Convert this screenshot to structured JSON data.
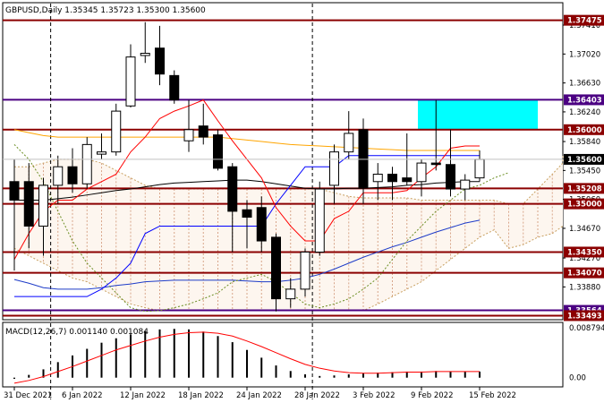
{
  "header": {
    "symbol_line": "GBPUSD,Daily  1.35345 1.35723 1.35300 1.35600",
    "macd_label": "MACD(12,26,7) 0.001140 0.001084"
  },
  "colors": {
    "background": "#ffffff",
    "level_line": "#8b0000",
    "level_label_bg": "#8b0000",
    "purple_line": "#4b0082",
    "cyan_zone": "#00ffff",
    "tenkan": "#ff0000",
    "kijun": "#0000ff",
    "chikou": "#6b8e23",
    "ma_orange": "#ffa500",
    "ma_black": "#000000",
    "ma_blue": "#1e3cc8",
    "macd_hist": "#000000",
    "macd_signal": "#ff0000",
    "price_label_bg": "#000000"
  },
  "price_axis": {
    "ticks": [
      "1.37410",
      "1.37020",
      "1.36630",
      "1.36240",
      "1.35840",
      "1.35450",
      "1.35060",
      "1.34670",
      "1.34270",
      "1.33880"
    ],
    "levels": [
      {
        "price": "1.37475",
        "value": 1.37475,
        "kind": "resistance"
      },
      {
        "price": "1.36403",
        "value": 1.36403,
        "kind": "purple"
      },
      {
        "price": "1.36000",
        "value": 1.36,
        "kind": "resistance"
      },
      {
        "price": "1.35208",
        "value": 1.35208,
        "kind": "resistance"
      },
      {
        "price": "1.35000",
        "value": 1.35,
        "kind": "resistance"
      },
      {
        "price": "1.34350",
        "value": 1.3435,
        "kind": "resistance"
      },
      {
        "price": "1.34070",
        "value": 1.3407,
        "kind": "resistance"
      },
      {
        "price": "1.33564",
        "value": 1.33564,
        "kind": "purple"
      },
      {
        "price": "1.33493",
        "value": 1.33493,
        "kind": "resistance"
      }
    ],
    "current_price": "1.35600",
    "current_value": 1.356,
    "macd_ticks": [
      "0.008794",
      "0.00"
    ]
  },
  "time_axis": {
    "labels": [
      "31 Dec 2021",
      "6 Jan 2022",
      "12 Jan 2022",
      "18 Jan 2022",
      "24 Jan 2022",
      "28 Jan 2022",
      "3 Feb 2022",
      "9 Feb 2022",
      "15 Feb 2022"
    ],
    "label_bars": [
      0,
      4,
      8,
      12,
      16,
      20,
      24,
      28,
      32
    ]
  },
  "chart_data": {
    "type": "candlestick",
    "symbol": "GBPUSD",
    "timeframe": "Daily",
    "ylim": [
      1.3345,
      1.377
    ],
    "candles": [
      {
        "o": 1.353,
        "h": 1.356,
        "l": 1.341,
        "c": 1.3505
      },
      {
        "o": 1.353,
        "h": 1.3555,
        "l": 1.344,
        "c": 1.347
      },
      {
        "o": 1.347,
        "h": 1.3535,
        "l": 1.343,
        "c": 1.3525
      },
      {
        "o": 1.3525,
        "h": 1.3565,
        "l": 1.35,
        "c": 1.355
      },
      {
        "o": 1.355,
        "h": 1.3575,
        "l": 1.3515,
        "c": 1.3527
      },
      {
        "o": 1.3527,
        "h": 1.359,
        "l": 1.352,
        "c": 1.358
      },
      {
        "o": 1.3567,
        "h": 1.3595,
        "l": 1.356,
        "c": 1.357
      },
      {
        "o": 1.357,
        "h": 1.3635,
        "l": 1.3565,
        "c": 1.3625
      },
      {
        "o": 1.3632,
        "h": 1.3715,
        "l": 1.363,
        "c": 1.3698
      },
      {
        "o": 1.37,
        "h": 1.3745,
        "l": 1.369,
        "c": 1.3703
      },
      {
        "o": 1.371,
        "h": 1.374,
        "l": 1.366,
        "c": 1.3675
      },
      {
        "o": 1.3673,
        "h": 1.368,
        "l": 1.3635,
        "c": 1.364
      },
      {
        "o": 1.3585,
        "h": 1.364,
        "l": 1.357,
        "c": 1.36
      },
      {
        "o": 1.3605,
        "h": 1.3635,
        "l": 1.358,
        "c": 1.359
      },
      {
        "o": 1.3593,
        "h": 1.36,
        "l": 1.3545,
        "c": 1.3548
      },
      {
        "o": 1.355,
        "h": 1.3555,
        "l": 1.3435,
        "c": 1.349
      },
      {
        "o": 1.3492,
        "h": 1.3505,
        "l": 1.344,
        "c": 1.3482
      },
      {
        "o": 1.3495,
        "h": 1.351,
        "l": 1.3435,
        "c": 1.345
      },
      {
        "o": 1.3455,
        "h": 1.346,
        "l": 1.3355,
        "c": 1.3372
      },
      {
        "o": 1.3372,
        "h": 1.34,
        "l": 1.336,
        "c": 1.3385
      },
      {
        "o": 1.3385,
        "h": 1.344,
        "l": 1.3375,
        "c": 1.3435
      },
      {
        "o": 1.3435,
        "h": 1.353,
        "l": 1.343,
        "c": 1.352
      },
      {
        "o": 1.3525,
        "h": 1.358,
        "l": 1.35,
        "c": 1.357
      },
      {
        "o": 1.357,
        "h": 1.3625,
        "l": 1.356,
        "c": 1.3595
      },
      {
        "o": 1.36,
        "h": 1.3615,
        "l": 1.35,
        "c": 1.3522
      },
      {
        "o": 1.353,
        "h": 1.3555,
        "l": 1.3505,
        "c": 1.354
      },
      {
        "o": 1.354,
        "h": 1.355,
        "l": 1.3505,
        "c": 1.353
      },
      {
        "o": 1.3535,
        "h": 1.3595,
        "l": 1.3525,
        "c": 1.353
      },
      {
        "o": 1.353,
        "h": 1.356,
        "l": 1.351,
        "c": 1.3555
      },
      {
        "o": 1.3555,
        "h": 1.364,
        "l": 1.3545,
        "c": 1.3553
      },
      {
        "o": 1.3553,
        "h": 1.36,
        "l": 1.351,
        "c": 1.352
      },
      {
        "o": 1.352,
        "h": 1.354,
        "l": 1.3505,
        "c": 1.3532
      },
      {
        "o": 1.3535,
        "h": 1.3572,
        "l": 1.353,
        "c": 1.356
      }
    ],
    "tenkan": [
      1.3425,
      1.346,
      1.349,
      1.3505,
      1.3505,
      1.352,
      1.353,
      1.354,
      1.357,
      1.359,
      1.3615,
      1.3625,
      1.3632,
      1.364,
      1.3612,
      1.3585,
      1.356,
      1.3535,
      1.3495,
      1.347,
      1.345,
      1.345,
      1.348,
      1.349,
      1.3515,
      1.3515,
      1.3515,
      1.3518,
      1.3535,
      1.355,
      1.3575,
      1.3578,
      1.3578
    ],
    "kijun": [
      1.3375,
      1.3375,
      1.3375,
      1.3375,
      1.3375,
      1.3375,
      1.3385,
      1.34,
      1.342,
      1.346,
      1.347,
      1.347,
      1.347,
      1.347,
      1.347,
      1.347,
      1.347,
      1.347,
      1.35,
      1.3525,
      1.355,
      1.355,
      1.355,
      1.3565,
      1.3565,
      1.3565,
      1.3565,
      1.3565,
      1.3565,
      1.3565,
      1.3565,
      1.3565,
      1.3565
    ],
    "ma_orange": [
      1.36,
      1.3596,
      1.3592,
      1.359,
      1.359,
      1.359,
      1.359,
      1.359,
      1.359,
      1.359,
      1.359,
      1.359,
      1.359,
      1.359,
      1.359,
      1.3588,
      1.3586,
      1.3584,
      1.3582,
      1.358,
      1.3579,
      1.3578,
      1.3577,
      1.3576,
      1.3575,
      1.3574,
      1.3573,
      1.3572,
      1.3572,
      1.3572,
      1.3572,
      1.3572,
      1.3572
    ],
    "ma_black": [
      1.3505,
      1.3505,
      1.3505,
      1.3507,
      1.3509,
      1.3512,
      1.3515,
      1.3518,
      1.352,
      1.3523,
      1.3526,
      1.3528,
      1.3529,
      1.353,
      1.3531,
      1.3532,
      1.3532,
      1.353,
      1.3527,
      1.3524,
      1.3521,
      1.352,
      1.352,
      1.3521,
      1.3521,
      1.3522,
      1.3523,
      1.3525,
      1.3526,
      1.3528,
      1.3529,
      1.353,
      1.353
    ],
    "ma_blue": [
      1.3398,
      1.3393,
      1.3387,
      1.3385,
      1.3385,
      1.3385,
      1.3387,
      1.339,
      1.3392,
      1.3395,
      1.3396,
      1.3397,
      1.3397,
      1.3397,
      1.3397,
      1.3397,
      1.3396,
      1.3395,
      1.3395,
      1.3397,
      1.34,
      1.3405,
      1.3412,
      1.342,
      1.3428,
      1.3435,
      1.3442,
      1.3448,
      1.3455,
      1.3462,
      1.3468,
      1.3474,
      1.3478
    ],
    "chikou": [
      1.358,
      1.356,
      1.353,
      1.349,
      1.345,
      1.342,
      1.34,
      1.338,
      1.336,
      1.3355,
      1.3356,
      1.336,
      1.3365,
      1.3372,
      1.338,
      1.3395,
      1.34,
      1.3405,
      1.3395,
      1.338,
      1.3365,
      1.336,
      1.3365,
      1.3372,
      1.3385,
      1.34,
      1.3425,
      1.345,
      1.347,
      1.349,
      1.3505,
      1.352,
      1.3525,
      1.3535,
      1.3542
    ],
    "cloud_top": [
      1.355,
      1.355,
      1.3555,
      1.356,
      1.356,
      1.356,
      1.3555,
      1.3545,
      1.3535,
      1.3525,
      1.352,
      1.352,
      1.352,
      1.352,
      1.352,
      1.352,
      1.352,
      1.352,
      1.352,
      1.352,
      1.352,
      1.352,
      1.3515,
      1.351,
      1.3508,
      1.3508,
      1.3508,
      1.3508,
      1.3505,
      1.3505,
      1.3505,
      1.3505,
      1.3505,
      1.3505,
      1.35,
      1.35,
      1.352,
      1.354,
      1.3555,
      1.356,
      1.3565
    ],
    "cloud_bottom": [
      1.344,
      1.343,
      1.342,
      1.341,
      1.34,
      1.3395,
      1.3385,
      1.3375,
      1.3365,
      1.336,
      1.3356,
      1.3356,
      1.3356,
      1.3356,
      1.3356,
      1.3356,
      1.3356,
      1.3356,
      1.3356,
      1.3356,
      1.3356,
      1.3356,
      1.3356,
      1.3356,
      1.3356,
      1.3365,
      1.3375,
      1.3385,
      1.3395,
      1.341,
      1.3425,
      1.344,
      1.3455,
      1.3465,
      1.344,
      1.3445,
      1.3455,
      1.346,
      1.347,
      1.347,
      1.347
    ],
    "cyan_zone": {
      "x_from_bar": 28,
      "x_to_bar": 36,
      "y_from": 1.36,
      "y_to": 1.36403
    },
    "macd_hist": [
      -0.0002,
      0.0005,
      0.0015,
      0.0028,
      0.004,
      0.0052,
      0.0063,
      0.0071,
      0.0078,
      0.0084,
      0.0087,
      0.0088,
      0.0087,
      0.0083,
      0.0075,
      0.0064,
      0.005,
      0.0036,
      0.0022,
      0.0012,
      0.0006,
      0.0003,
      0.0004,
      0.0006,
      0.0008,
      0.0009,
      0.001,
      0.0011,
      0.0011,
      0.0012,
      0.0011,
      0.0011,
      0.0011
    ],
    "macd_signal": [
      -0.001,
      -0.0005,
      0.0002,
      0.0011,
      0.002,
      0.003,
      0.004,
      0.005,
      0.0058,
      0.0066,
      0.0073,
      0.0078,
      0.0081,
      0.0082,
      0.008,
      0.0075,
      0.0066,
      0.0056,
      0.0045,
      0.0034,
      0.0024,
      0.0017,
      0.0012,
      0.0009,
      0.0008,
      0.0008,
      0.0009,
      0.001,
      0.001,
      0.0011,
      0.0011,
      0.0011,
      0.0011
    ],
    "macd_ylim": [
      -0.0015,
      0.0098
    ],
    "vlines_at_bars": [
      2.5,
      20.5
    ]
  }
}
